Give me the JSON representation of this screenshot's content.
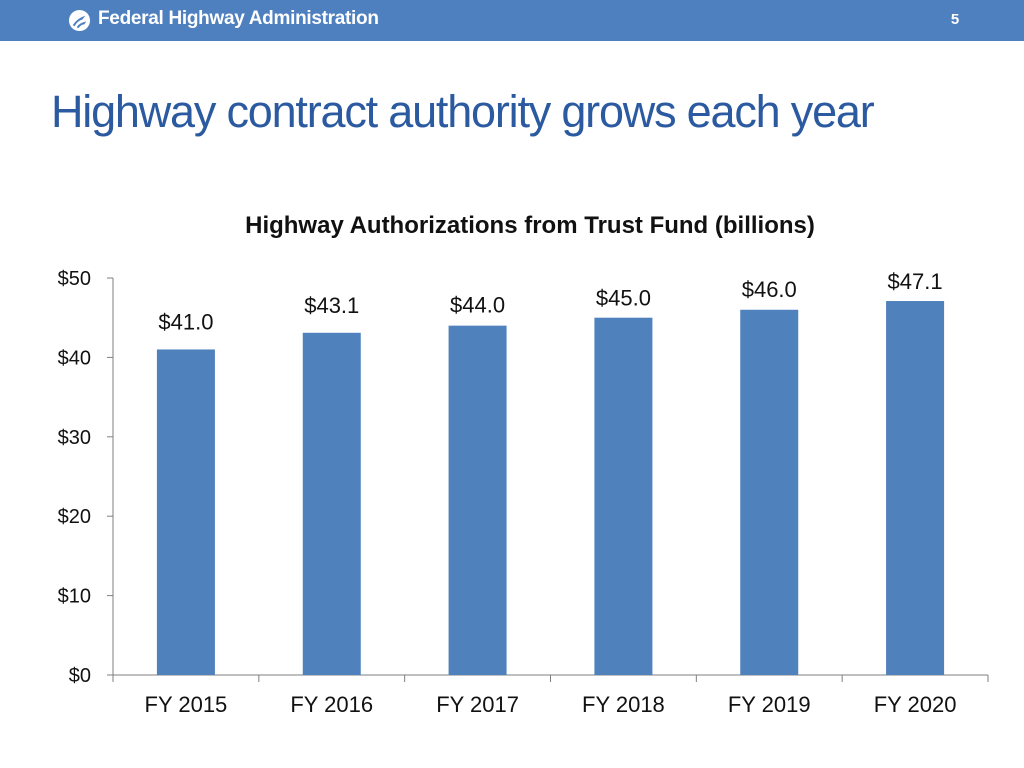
{
  "header": {
    "agency_name": "Federal Highway Administration",
    "page_number": "5",
    "bar_color": "#4e7fbf"
  },
  "slide": {
    "title": "Highway contract authority grows each year"
  },
  "chart_data": {
    "type": "bar",
    "title": "Highway Authorizations from Trust Fund (billions)",
    "categories": [
      "FY 2015",
      "FY 2016",
      "FY 2017",
      "FY 2018",
      "FY 2019",
      "FY 2020"
    ],
    "values": [
      41.0,
      43.1,
      44.0,
      45.0,
      46.0,
      47.1
    ],
    "data_labels": [
      "$41.0",
      "$43.1",
      "$44.0",
      "$45.0",
      "$46.0",
      "$47.1"
    ],
    "ylim": [
      0,
      50
    ],
    "yticks": [
      0,
      10,
      20,
      30,
      40,
      50
    ],
    "ytick_labels": [
      "$0",
      "$10",
      "$20",
      "$30",
      "$40",
      "$50"
    ],
    "xlabel": "",
    "ylabel": "",
    "grid": false,
    "bar_color": "#4f81bd"
  }
}
